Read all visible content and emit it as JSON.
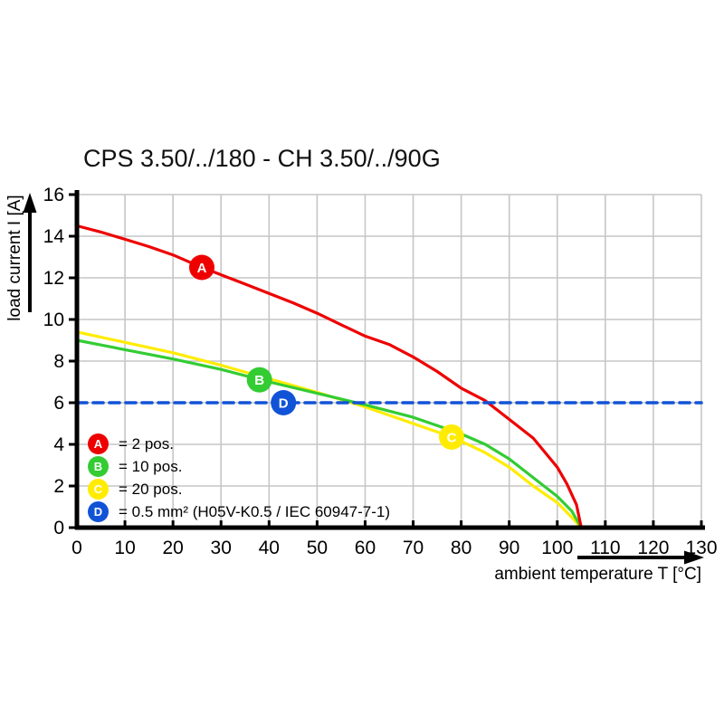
{
  "page": {
    "background": "#ffffff"
  },
  "chart_data": {
    "type": "line",
    "title": "CPS 3.50/../180 - CH 3.50/../90G",
    "x_axis": {
      "label": "ambient temperature T [°C]",
      "min": 0,
      "max": 130,
      "tick_step": 10,
      "ticks": [
        0,
        10,
        20,
        30,
        40,
        50,
        60,
        70,
        80,
        90,
        100,
        110,
        120,
        130
      ]
    },
    "y_axis": {
      "label": "load current I [A]",
      "min": 0,
      "max": 16,
      "tick_step": 2,
      "ticks": [
        0,
        2,
        4,
        6,
        8,
        10,
        12,
        14,
        16
      ]
    },
    "grid": "on",
    "colors": {
      "grid": "#c6c6c6",
      "axis": "#000000",
      "marker_letter": "#ffffff",
      "series_a": "#ee0000",
      "series_b": "#33cc33",
      "series_c": "#ffec00",
      "series_d": "#1153d7"
    },
    "series": [
      {
        "id": "C",
        "name": "20 pos.",
        "color": "#ffec00",
        "line_style": "solid",
        "marker": {
          "symbol": "C",
          "x": 78,
          "y": 4.35
        },
        "points": [
          [
            0,
            9.4
          ],
          [
            10,
            8.9
          ],
          [
            20,
            8.4
          ],
          [
            30,
            7.8
          ],
          [
            40,
            7.15
          ],
          [
            50,
            6.5
          ],
          [
            60,
            5.8
          ],
          [
            70,
            5.0
          ],
          [
            75,
            4.6
          ],
          [
            80,
            4.15
          ],
          [
            85,
            3.6
          ],
          [
            90,
            2.9
          ],
          [
            95,
            2.0
          ],
          [
            100,
            1.2
          ],
          [
            103,
            0.5
          ],
          [
            105,
            0
          ]
        ]
      },
      {
        "id": "B",
        "name": "10 pos.",
        "color": "#33cc33",
        "line_style": "solid",
        "marker": {
          "symbol": "B",
          "x": 38,
          "y": 7.1
        },
        "points": [
          [
            0,
            9.0
          ],
          [
            10,
            8.55
          ],
          [
            20,
            8.1
          ],
          [
            30,
            7.6
          ],
          [
            40,
            7.0
          ],
          [
            50,
            6.45
          ],
          [
            60,
            5.9
          ],
          [
            70,
            5.3
          ],
          [
            75,
            4.9
          ],
          [
            80,
            4.5
          ],
          [
            85,
            4.0
          ],
          [
            90,
            3.3
          ],
          [
            95,
            2.4
          ],
          [
            100,
            1.5
          ],
          [
            103,
            0.8
          ],
          [
            105,
            0
          ]
        ]
      },
      {
        "id": "A",
        "name": "2 pos.",
        "color": "#ee0000",
        "line_style": "solid",
        "marker": {
          "symbol": "A",
          "x": 26,
          "y": 12.5
        },
        "points": [
          [
            0,
            14.5
          ],
          [
            5,
            14.2
          ],
          [
            10,
            13.85
          ],
          [
            15,
            13.5
          ],
          [
            20,
            13.1
          ],
          [
            25,
            12.6
          ],
          [
            30,
            12.15
          ],
          [
            35,
            11.7
          ],
          [
            40,
            11.25
          ],
          [
            45,
            10.8
          ],
          [
            50,
            10.3
          ],
          [
            55,
            9.75
          ],
          [
            60,
            9.2
          ],
          [
            65,
            8.8
          ],
          [
            70,
            8.2
          ],
          [
            75,
            7.5
          ],
          [
            80,
            6.7
          ],
          [
            85,
            6.1
          ],
          [
            90,
            5.2
          ],
          [
            95,
            4.3
          ],
          [
            100,
            2.9
          ],
          [
            102,
            2.1
          ],
          [
            104,
            1.1
          ],
          [
            105,
            0
          ]
        ]
      },
      {
        "id": "D",
        "name": "0.5 mm² (H05V-K0.5 / IEC 60947-7-1)",
        "color": "#1153d7",
        "line_style": "dashed",
        "marker": {
          "symbol": "D",
          "x": 43,
          "y": 6
        },
        "points": [
          [
            0,
            6
          ],
          [
            130,
            6
          ]
        ]
      }
    ],
    "legend": {
      "position": "inside-bottom-left",
      "items": [
        {
          "symbol": "A",
          "color": "#ee0000",
          "label": "= 2 pos."
        },
        {
          "symbol": "B",
          "color": "#33cc33",
          "label": "= 10 pos."
        },
        {
          "symbol": "C",
          "color": "#ffec00",
          "label": "= 20 pos."
        },
        {
          "symbol": "D",
          "color": "#1153d7",
          "label": "= 0.5 mm² (H05V-K0.5 / IEC 60947-7-1)"
        }
      ]
    }
  }
}
